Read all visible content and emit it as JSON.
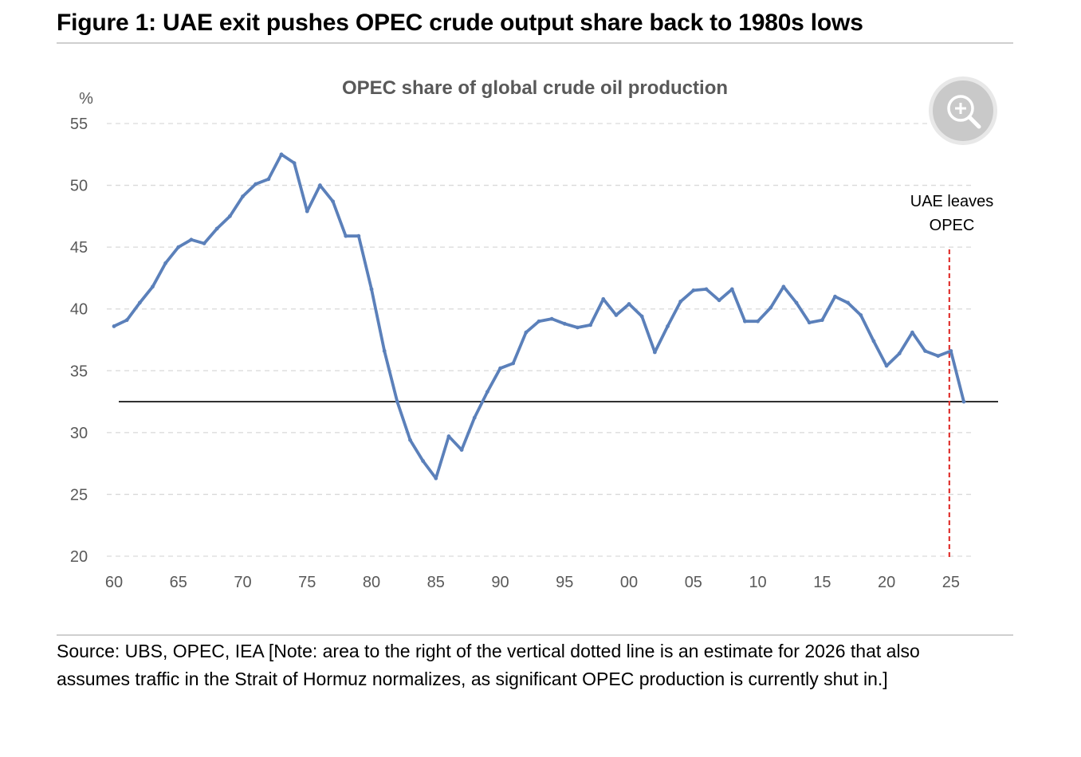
{
  "figure_title": "Figure 1: UAE exit pushes OPEC crude output share back to 1980s lows",
  "source_note": "Source: UBS, OPEC, IEA [Note: area to the right of the vertical dotted line is an estimate for 2026 that also assumes traffic in the Strait of Hormuz normalizes, as significant OPEC production is currently shut in.]",
  "zoom_button": {
    "icon": "zoom-in-icon"
  },
  "chart_data": {
    "type": "line",
    "title": "OPEC share of global crude oil production",
    "ylabel": "%",
    "xlabel": "",
    "ylim": [
      20,
      55
    ],
    "xlim": [
      1960,
      2026
    ],
    "y_ticks": [
      "20",
      "25",
      "30",
      "35",
      "40",
      "45",
      "50",
      "55"
    ],
    "x_ticks": [
      {
        "year": 1960,
        "label": "60"
      },
      {
        "year": 1965,
        "label": "65"
      },
      {
        "year": 1970,
        "label": "70"
      },
      {
        "year": 1975,
        "label": "75"
      },
      {
        "year": 1980,
        "label": "80"
      },
      {
        "year": 1985,
        "label": "85"
      },
      {
        "year": 1990,
        "label": "90"
      },
      {
        "year": 1995,
        "label": "95"
      },
      {
        "year": 2000,
        "label": "00"
      },
      {
        "year": 2005,
        "label": "05"
      },
      {
        "year": 2010,
        "label": "10"
      },
      {
        "year": 2015,
        "label": "15"
      },
      {
        "year": 2020,
        "label": "20"
      },
      {
        "year": 2025,
        "label": "25"
      }
    ],
    "grid": "horizontal-dashed",
    "series": [
      {
        "color": "#5B80BA",
        "x": [
          1960,
          1961,
          1962,
          1963,
          1964,
          1965,
          1966,
          1967,
          1968,
          1969,
          1970,
          1971,
          1972,
          1973,
          1974,
          1975,
          1976,
          1977,
          1978,
          1979,
          1980,
          1981,
          1982,
          1983,
          1984,
          1985,
          1986,
          1987,
          1988,
          1989,
          1990,
          1991,
          1992,
          1993,
          1994,
          1995,
          1996,
          1997,
          1998,
          1999,
          2000,
          2001,
          2002,
          2003,
          2004,
          2005,
          2006,
          2007,
          2008,
          2009,
          2010,
          2011,
          2012,
          2013,
          2014,
          2015,
          2016,
          2017,
          2018,
          2019,
          2020,
          2021,
          2022,
          2023,
          2024,
          2025,
          2026
        ],
        "values": [
          38.6,
          39.1,
          40.5,
          41.8,
          43.7,
          45.0,
          45.6,
          45.3,
          46.5,
          47.5,
          49.1,
          50.1,
          50.5,
          52.5,
          51.8,
          47.9,
          50.0,
          48.7,
          45.9,
          45.9,
          41.6,
          36.6,
          32.5,
          29.4,
          27.7,
          26.3,
          29.7,
          28.6,
          31.2,
          33.3,
          35.2,
          35.6,
          38.1,
          39.0,
          39.2,
          38.8,
          38.5,
          38.7,
          40.8,
          39.5,
          40.4,
          39.4,
          36.5,
          38.6,
          40.6,
          41.5,
          41.6,
          40.7,
          41.6,
          39.0,
          39.0,
          40.1,
          41.8,
          40.5,
          38.9,
          39.1,
          41.0,
          40.5,
          39.5,
          37.4,
          35.4,
          36.4,
          38.1,
          36.6,
          36.2,
          36.6,
          32.5
        ]
      }
    ],
    "reference_line": {
      "value": 32.5,
      "color": "#000000"
    },
    "annotation": {
      "year": 2025,
      "lines": [
        "UAE leaves",
        "OPEC"
      ],
      "color": "#E0332F",
      "style": "dashed"
    }
  }
}
